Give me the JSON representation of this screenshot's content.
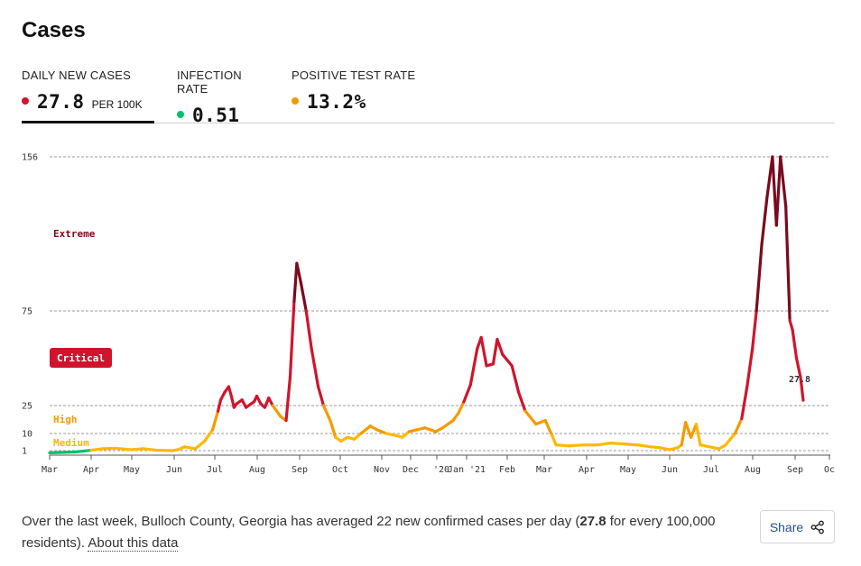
{
  "title": "Cases",
  "tabs": [
    {
      "label": "DAILY NEW CASES",
      "value": "27.8",
      "unit": "PER 100K",
      "dot_color": "#d0142c"
    },
    {
      "label": "INFECTION RATE",
      "value": "0.51",
      "unit": "",
      "dot_color": "#00c16a"
    },
    {
      "label": "POSITIVE TEST RATE",
      "value": "13.2%",
      "unit": "",
      "dot_color": "#f09a00"
    }
  ],
  "chart_data": {
    "type": "line",
    "x_tick_labels": [
      "Mar",
      "Apr",
      "May",
      "Jun",
      "Jul",
      "Aug",
      "Sep",
      "Oct",
      "Nov",
      "Dec",
      "'20",
      "Jan '21",
      "Feb",
      "Mar",
      "Apr",
      "May",
      "Jun",
      "Jul",
      "Aug",
      "Sep",
      "Oc"
    ],
    "y_ticks": [
      1,
      10,
      25,
      75,
      156
    ],
    "y_tick_labels": [
      "1",
      "10",
      "25",
      "75",
      "156"
    ],
    "y_scale": "piecewise",
    "grid": "horizontal dashed",
    "zone_labels": [
      "Extreme",
      "Critical",
      "High",
      "Medium"
    ],
    "zone_colors": {
      "low": "#00c16a",
      "medium": "#ffb800",
      "high": "#f59a00",
      "critical": "#d0142c",
      "extreme": "#7a0a1d"
    },
    "end_label": "27.8",
    "x_start": "2020-03-01",
    "series": [
      {
        "unit": "daily new cases per 100k",
        "points": [
          [
            "2020-03-01",
            0.2
          ],
          [
            "2020-03-20",
            0.5
          ],
          [
            "2020-04-01",
            1.2
          ],
          [
            "2020-04-10",
            2
          ],
          [
            "2020-04-20",
            2.2
          ],
          [
            "2020-05-01",
            1.5
          ],
          [
            "2020-05-10",
            2
          ],
          [
            "2020-05-20",
            1.2
          ],
          [
            "2020-06-01",
            1
          ],
          [
            "2020-06-05",
            1.5
          ],
          [
            "2020-06-10",
            3
          ],
          [
            "2020-06-18",
            2
          ],
          [
            "2020-06-25",
            6
          ],
          [
            "2020-07-01",
            12
          ],
          [
            "2020-07-05",
            22
          ],
          [
            "2020-07-07",
            28
          ],
          [
            "2020-07-10",
            32
          ],
          [
            "2020-07-13",
            35
          ],
          [
            "2020-07-15",
            30
          ],
          [
            "2020-07-17",
            24
          ],
          [
            "2020-07-19",
            26
          ],
          [
            "2020-07-23",
            28
          ],
          [
            "2020-07-26",
            24
          ],
          [
            "2020-08-01",
            27
          ],
          [
            "2020-08-03",
            30
          ],
          [
            "2020-08-06",
            26
          ],
          [
            "2020-08-09",
            24
          ],
          [
            "2020-08-12",
            29
          ],
          [
            "2020-08-15",
            25
          ],
          [
            "2020-08-18",
            22
          ],
          [
            "2020-08-21",
            19
          ],
          [
            "2020-08-25",
            17
          ],
          [
            "2020-08-28",
            40
          ],
          [
            "2020-08-31",
            80
          ],
          [
            "2020-09-02",
            100
          ],
          [
            "2020-09-05",
            90
          ],
          [
            "2020-09-09",
            75
          ],
          [
            "2020-09-13",
            55
          ],
          [
            "2020-09-18",
            35
          ],
          [
            "2020-09-22",
            25
          ],
          [
            "2020-09-27",
            17
          ],
          [
            "2020-10-01",
            8
          ],
          [
            "2020-10-05",
            6
          ],
          [
            "2020-10-10",
            8
          ],
          [
            "2020-10-15",
            7
          ],
          [
            "2020-10-20",
            10
          ],
          [
            "2020-10-27",
            14
          ],
          [
            "2020-11-01",
            12
          ],
          [
            "2020-11-08",
            10
          ],
          [
            "2020-11-15",
            9
          ],
          [
            "2020-11-20",
            8
          ],
          [
            "2020-11-25",
            11
          ],
          [
            "2020-12-01",
            12
          ],
          [
            "2020-12-07",
            13
          ],
          [
            "2020-12-15",
            11
          ],
          [
            "2020-12-20",
            13
          ],
          [
            "2020-12-28",
            17
          ],
          [
            "2021-01-01",
            21
          ],
          [
            "2021-01-05",
            27
          ],
          [
            "2021-01-10",
            36
          ],
          [
            "2021-01-15",
            55
          ],
          [
            "2021-01-18",
            61
          ],
          [
            "2021-01-22",
            46
          ],
          [
            "2021-01-27",
            47
          ],
          [
            "2021-01-30",
            60
          ],
          [
            "2021-02-03",
            52
          ],
          [
            "2021-02-10",
            46
          ],
          [
            "2021-02-15",
            32
          ],
          [
            "2021-02-20",
            22
          ],
          [
            "2021-02-28",
            15
          ],
          [
            "2021-03-07",
            17
          ],
          [
            "2021-03-12",
            9
          ],
          [
            "2021-03-15",
            4
          ],
          [
            "2021-03-25",
            3.5
          ],
          [
            "2021-04-05",
            4
          ],
          [
            "2021-04-15",
            4
          ],
          [
            "2021-04-25",
            5
          ],
          [
            "2021-05-05",
            4.5
          ],
          [
            "2021-05-15",
            4
          ],
          [
            "2021-05-25",
            3
          ],
          [
            "2021-06-01",
            2.5
          ],
          [
            "2021-06-08",
            1.5
          ],
          [
            "2021-06-14",
            2.5
          ],
          [
            "2021-06-17",
            4
          ],
          [
            "2021-06-20",
            16
          ],
          [
            "2021-06-24",
            8
          ],
          [
            "2021-06-28",
            15
          ],
          [
            "2021-07-01",
            4
          ],
          [
            "2021-07-08",
            3
          ],
          [
            "2021-07-15",
            2
          ],
          [
            "2021-07-20",
            4
          ],
          [
            "2021-07-27",
            10
          ],
          [
            "2021-08-01",
            18
          ],
          [
            "2021-08-05",
            35
          ],
          [
            "2021-08-09",
            55
          ],
          [
            "2021-08-12",
            75
          ],
          [
            "2021-08-16",
            110
          ],
          [
            "2021-08-20",
            135
          ],
          [
            "2021-08-24",
            156
          ],
          [
            "2021-08-27",
            120
          ],
          [
            "2021-08-30",
            156
          ],
          [
            "2021-09-03",
            130
          ],
          [
            "2021-09-06",
            70
          ],
          [
            "2021-09-08",
            65
          ],
          [
            "2021-09-11",
            50
          ],
          [
            "2021-09-14",
            40
          ],
          [
            "2021-09-16",
            27.8
          ]
        ]
      }
    ]
  },
  "footer": {
    "text": "Over the last week, Bulloch County, Georgia has averaged 22 new confirmed cases per day (",
    "bold_value": "27.8",
    "text_after": " for every 100,000 residents). ",
    "link": "About this data"
  },
  "share": {
    "label": "Share",
    "icon": "share-icon"
  }
}
